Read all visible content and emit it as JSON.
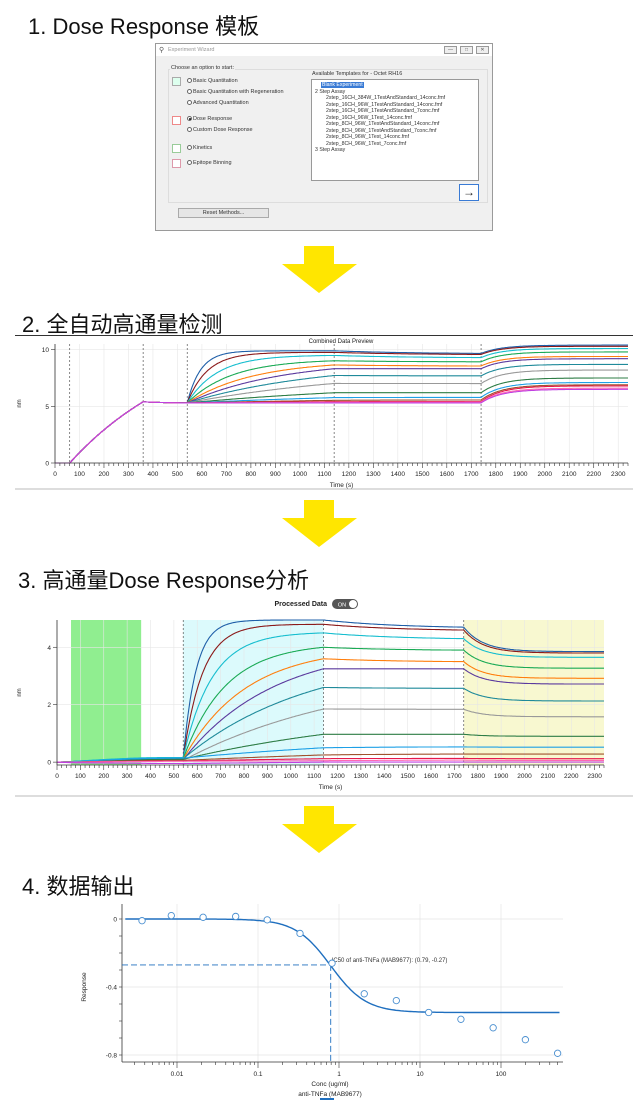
{
  "sections": [
    {
      "title": "1. Dose Response 模板"
    },
    {
      "title": "2. 全自动高通量检测"
    },
    {
      "title": "3. 高通量Dose Response分析"
    },
    {
      "title": "4. 数据输出"
    }
  ],
  "arrow_color": "#ffe600",
  "wizard": {
    "title": "Experiment Wizard",
    "group_label": "Choose an option to start:",
    "options": [
      {
        "label": "Basic Quantitation",
        "checked": false
      },
      {
        "label": "Basic Quantitation with Regeneration",
        "checked": false
      },
      {
        "label": "Advanced Quantitation",
        "checked": false
      },
      {
        "label": "Dose Response",
        "checked": true
      },
      {
        "label": "Custom Dose Response",
        "checked": false
      },
      {
        "label": "Kinetics",
        "checked": false
      },
      {
        "label": "Epitope Binning",
        "checked": false
      }
    ],
    "templates_label": "Available Templates for - Octet RH16",
    "templates": {
      "selected": "Blank Experiment",
      "group1": "2 Step Assay",
      "group1_items": [
        "2step_16CH_384W_1TestAndStandard_14conc.fmf",
        "2step_16CH_96W_1TestAndStandard_14conc.fmf",
        "2step_16CH_96W_1TestAndStandard_7conc.fmf",
        "2step_16CH_96W_1Test_14conc.fmf",
        "2step_8CH_96W_1TestAndStandard_14conc.fmf",
        "2step_8CH_96W_1TestAndStandard_7conc.fmf",
        "2step_8CH_96W_1Test_14conc.fmf",
        "2step_8CH_96W_1Test_7conc.fmf"
      ],
      "group2": "3 Step Assay"
    },
    "next_icon": "→",
    "reset_label": "Reset Methods...",
    "minimize": "—",
    "maximize": "□",
    "close": "✕"
  },
  "chart_data": [
    {
      "type": "line",
      "title": "Combined Data Preview",
      "xlabel": "Time (s)",
      "ylabel": "nm",
      "xlim": [
        0,
        2340
      ],
      "ylim": [
        0,
        10.5
      ],
      "yticks": [
        0,
        5,
        10
      ],
      "xticks": [
        0,
        100,
        200,
        300,
        400,
        500,
        600,
        700,
        800,
        900,
        1000,
        1100,
        1200,
        1300,
        1400,
        1500,
        1600,
        1700,
        1800,
        1900,
        2000,
        2100,
        2200,
        2300
      ],
      "step_boundaries": [
        60,
        360,
        540,
        1140,
        1740
      ],
      "grid": true,
      "colors": [
        "#1f5fa8",
        "#8b1a1a",
        "#17becf",
        "#1aaa55",
        "#ff7f0e",
        "#5b3a9e",
        "#1f8a9a",
        "#999999",
        "#2e7d46",
        "#1ea0e6",
        "#a0522d",
        "#e6194b",
        "#ff69b4",
        "#c040e0"
      ],
      "times": [
        0,
        60,
        360,
        540,
        1140,
        1740,
        2340
      ],
      "series": [
        {
          "values": [
            0,
            0,
            5.4,
            5.3,
            9.9,
            9.67,
            10.4
          ]
        },
        {
          "values": [
            0,
            0,
            5.4,
            5.3,
            9.76,
            9.58,
            10.3
          ]
        },
        {
          "values": [
            0,
            0,
            5.4,
            5.3,
            9.49,
            9.3,
            10.1
          ]
        },
        {
          "values": [
            0,
            0,
            5.4,
            5.3,
            9.02,
            8.93,
            9.8
          ]
        },
        {
          "values": [
            0,
            0,
            5.4,
            5.3,
            8.65,
            8.56,
            9.4
          ]
        },
        {
          "values": [
            0,
            0,
            5.4,
            5.3,
            8.32,
            8.32,
            9.2
          ]
        },
        {
          "values": [
            0,
            0,
            5.4,
            5.3,
            7.72,
            7.69,
            8.7
          ]
        },
        {
          "values": [
            0,
            0,
            5.4,
            5.3,
            7.02,
            7.01,
            8.2
          ]
        },
        {
          "values": [
            0,
            0,
            5.4,
            5.3,
            6.2,
            6.2,
            7.5
          ]
        },
        {
          "values": [
            0,
            0,
            5.4,
            5.3,
            5.77,
            5.79,
            7.1
          ]
        },
        {
          "values": [
            0,
            0,
            5.4,
            5.3,
            5.53,
            5.56,
            6.9
          ]
        },
        {
          "values": [
            0,
            0,
            5.4,
            5.3,
            5.41,
            5.42,
            6.8
          ]
        },
        {
          "values": [
            0,
            0,
            5.4,
            5.3,
            5.35,
            5.37,
            6.6
          ]
        },
        {
          "values": [
            0,
            0,
            5.4,
            5.3,
            5.3,
            5.3,
            6.5
          ]
        }
      ]
    },
    {
      "type": "line",
      "toggle_label": "Processed Data",
      "toggle_state": "ON",
      "xlabel": "Time (s)",
      "ylabel": "nm",
      "xlim": [
        0,
        2340
      ],
      "ylim": [
        -0.1,
        4.95
      ],
      "yticks": [
        0,
        2,
        4
      ],
      "xticks": [
        0,
        100,
        200,
        300,
        400,
        500,
        600,
        700,
        800,
        900,
        1000,
        1100,
        1200,
        1300,
        1400,
        1500,
        1600,
        1700,
        1800,
        1900,
        2000,
        2100,
        2200,
        2300
      ],
      "regions": [
        {
          "from": 60,
          "to": 360,
          "color": "#90ee90"
        },
        {
          "from": 540,
          "to": 1140,
          "color": "#dcfafc"
        },
        {
          "from": 1740,
          "to": 2340,
          "color": "#f8f8d0"
        }
      ],
      "step_boundaries": [
        540,
        1140,
        1740
      ],
      "grid": true,
      "times": [
        0,
        60,
        360,
        540,
        1140,
        1740,
        2340
      ],
      "series": [
        {
          "values": [
            0,
            0.02,
            0.12,
            0.14,
            4.95,
            4.7,
            3.85
          ]
        },
        {
          "values": [
            0,
            0.02,
            0.1,
            0.12,
            4.8,
            4.6,
            3.8
          ]
        },
        {
          "values": [
            0,
            0.02,
            0.15,
            0.16,
            4.5,
            4.3,
            3.65
          ]
        },
        {
          "values": [
            0,
            0.01,
            0.1,
            0.12,
            4.0,
            3.9,
            3.27
          ]
        },
        {
          "values": [
            0,
            0.01,
            0.08,
            0.1,
            3.6,
            3.5,
            2.92
          ]
        },
        {
          "values": [
            0,
            0.01,
            0.06,
            0.08,
            3.25,
            3.25,
            2.72
          ]
        },
        {
          "values": [
            0,
            0.01,
            0.1,
            0.12,
            2.6,
            2.57,
            2.13
          ]
        },
        {
          "values": [
            0,
            0.01,
            0.05,
            0.06,
            1.85,
            1.84,
            1.58
          ]
        },
        {
          "values": [
            0,
            0.01,
            0.08,
            0.1,
            0.97,
            0.97,
            0.9
          ]
        },
        {
          "values": [
            0,
            0.01,
            0.12,
            0.14,
            0.5,
            0.53,
            0.52
          ]
        },
        {
          "values": [
            0,
            0,
            0.05,
            0.06,
            0.25,
            0.28,
            0.28
          ]
        },
        {
          "values": [
            0,
            0,
            0.03,
            0.04,
            0.12,
            0.13,
            0.12
          ]
        },
        {
          "values": [
            0,
            0,
            0.02,
            0.03,
            0.05,
            0.07,
            0.06
          ]
        },
        {
          "values": [
            0,
            -0.02,
            -0.04,
            -0.05,
            0.0,
            0.0,
            0.0
          ]
        }
      ]
    },
    {
      "type": "scatter",
      "xlabel": "Conc (ug/ml)",
      "ylabel": "Response",
      "xscale": "log",
      "xlim": [
        0.0023,
        550
      ],
      "ylim": [
        -0.83,
        0.06
      ],
      "xticks": [
        "0.01",
        "0.1",
        "1",
        "10",
        "100"
      ],
      "yticks": [
        "0",
        "-0.4",
        "-0.8"
      ],
      "grid": true,
      "legend": "anti-TNFa (MAB9677)",
      "legend_placement": "bottom",
      "color": "#1f6fbf",
      "annotation": "IC50 of anti-TNFa (MAB9677): (0.79, -0.27)",
      "ic50": {
        "x": 0.79,
        "y": -0.27
      },
      "fit": {
        "top": 0.0,
        "bottom": -0.55,
        "ic50": 0.79,
        "hill": 2.0
      },
      "x": [
        0.0037,
        0.0085,
        0.021,
        0.053,
        0.13,
        0.33,
        0.82,
        2.05,
        5.1,
        12.8,
        32,
        80,
        200,
        500
      ],
      "y": [
        -0.01,
        0.02,
        0.01,
        0.015,
        -0.005,
        -0.085,
        -0.26,
        -0.44,
        -0.48,
        -0.55,
        -0.59,
        -0.64,
        -0.71,
        -0.79
      ]
    }
  ]
}
